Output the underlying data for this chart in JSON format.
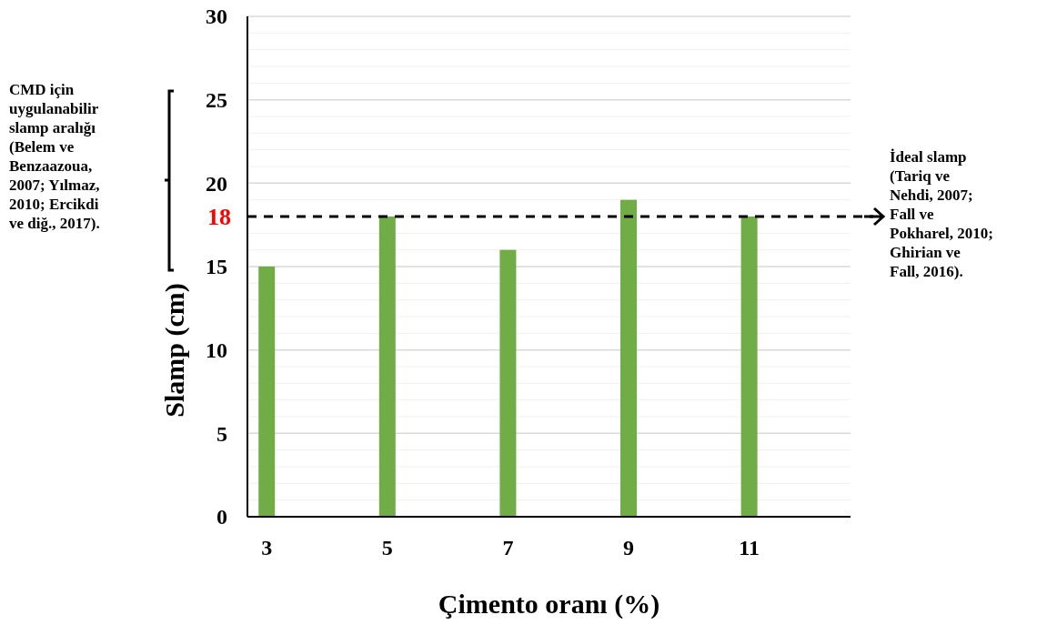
{
  "chart_data": {
    "type": "bar",
    "xlabel": "Çimento oranı (%)",
    "ylabel": "Slamp (cm)",
    "categories": [
      "3",
      "5",
      "7",
      "9",
      "11"
    ],
    "values": [
      15,
      18,
      16,
      19,
      18
    ],
    "color": "#70ad47",
    "ylim": [
      0,
      30
    ],
    "yticks": [
      0,
      {
        "value": 1,
        "label": null
      },
      {
        "value": 2,
        "label": null
      },
      {
        "value": 3,
        "label": null
      },
      {
        "value": 4,
        "label": null
      },
      5,
      {
        "value": 6,
        "label": null
      },
      {
        "value": 7,
        "label": null
      },
      {
        "value": 8,
        "label": null
      },
      {
        "value": 9,
        "label": null
      },
      10,
      {
        "value": 11,
        "label": null
      },
      {
        "value": 12,
        "label": null
      },
      {
        "value": 13,
        "label": null
      },
      {
        "value": 14,
        "label": null
      },
      15,
      {
        "value": 16,
        "label": null
      },
      {
        "value": 17,
        "label": null
      },
      {
        "value": 18,
        "label": null
      },
      {
        "value": 19,
        "label": null
      },
      20,
      {
        "value": 21,
        "label": null
      },
      {
        "value": 22,
        "label": null
      },
      {
        "value": 23,
        "label": null
      },
      {
        "value": 24,
        "label": null
      },
      25,
      {
        "value": 26,
        "label": null
      },
      {
        "value": 27,
        "label": null
      },
      {
        "value": 28,
        "label": null
      },
      {
        "value": 29,
        "label": null
      },
      30
    ],
    "grid": "y",
    "ref_lines": [
      {
        "axis": "y",
        "value": 18,
        "label": "18",
        "color": "#000000",
        "line_style": "dashed"
      }
    ],
    "annotations": [
      "CMD için uygulanabilir slamp aralığı (Belem ve Benzaazoua, 2007; Yılmaz, 2010; Ercikdi ve diğ., 2017).",
      "İdeal slamp (Tariq ve Nehdi, 2007; Fall ve Pokharel, 2010; Ghirian ve Fall, 2016)."
    ]
  }
}
